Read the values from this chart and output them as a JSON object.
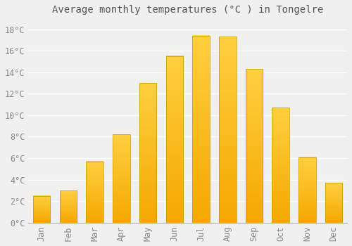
{
  "title": "Average monthly temperatures (°C ) in Tongelre",
  "months": [
    "Jan",
    "Feb",
    "Mar",
    "Apr",
    "May",
    "Jun",
    "Jul",
    "Aug",
    "Sep",
    "Oct",
    "Nov",
    "Dec"
  ],
  "temperatures": [
    2.5,
    3.0,
    5.7,
    8.2,
    13.0,
    15.5,
    17.4,
    17.3,
    14.3,
    10.7,
    6.1,
    3.7
  ],
  "bar_color_bottom": "#F5A800",
  "bar_color_top": "#FFD040",
  "bar_edge_color": "#C8960A",
  "ylim": [
    0,
    19
  ],
  "yticks": [
    0,
    2,
    4,
    6,
    8,
    10,
    12,
    14,
    16,
    18
  ],
  "ytick_labels": [
    "0°C",
    "2°C",
    "4°C",
    "6°C",
    "8°C",
    "10°C",
    "12°C",
    "14°C",
    "16°C",
    "18°C"
  ],
  "background_color": "#f0f0f0",
  "grid_color": "#ffffff",
  "title_fontsize": 10,
  "tick_fontsize": 8.5,
  "bar_width": 0.65
}
